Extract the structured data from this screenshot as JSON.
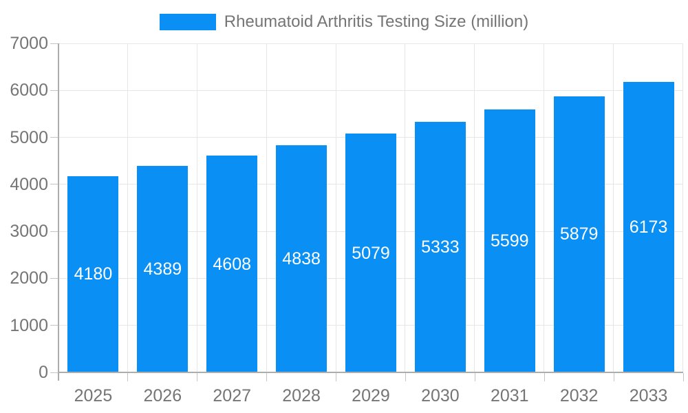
{
  "chart_data": {
    "type": "bar",
    "legend": "Rheumatoid Arthritis Testing Size (million)",
    "legend_position": "top",
    "categories": [
      "2025",
      "2026",
      "2027",
      "2028",
      "2029",
      "2030",
      "2031",
      "2032",
      "2033"
    ],
    "values": [
      4180,
      4389,
      4608,
      4838,
      5079,
      5333,
      5599,
      5879,
      6173
    ],
    "bar_value_labels": [
      "4180",
      "4389",
      "4608",
      "4838",
      "5079",
      "5333",
      "5599",
      "5879",
      "6173"
    ],
    "title": "",
    "xlabel": "",
    "ylabel": "",
    "ylim": [
      0,
      7000
    ],
    "yticks": [
      0,
      1000,
      2000,
      3000,
      4000,
      5000,
      6000,
      7000
    ],
    "grid": true,
    "bar_labels_inside": "centered",
    "colors": {
      "bar": "#0a8ff4",
      "bar_label": "#ffffff",
      "axis_text": "#757575",
      "gridline": "#e6e6e6",
      "axis_line": "#adadad",
      "tick_mark": "#c4c4c4",
      "background": "#ffffff"
    }
  }
}
